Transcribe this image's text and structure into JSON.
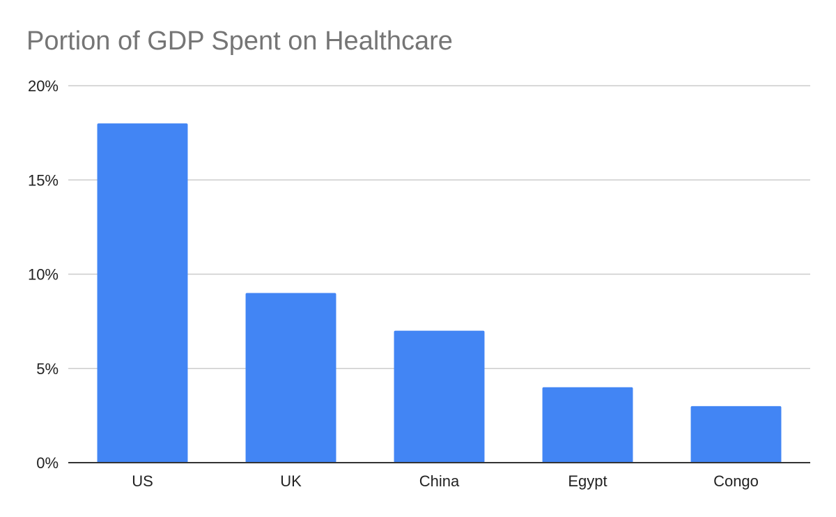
{
  "chart_data": {
    "type": "bar",
    "title": "Portion of GDP Spent on Healthcare",
    "xlabel": "",
    "ylabel": "",
    "categories": [
      "US",
      "UK",
      "China",
      "Egypt",
      "Congo"
    ],
    "values": [
      0.18,
      0.09,
      0.07,
      0.04,
      0.03
    ],
    "ylim": [
      0,
      0.2
    ],
    "yticks": [
      {
        "value": 0,
        "label": "0%"
      },
      {
        "value": 0.05,
        "label": "5%"
      },
      {
        "value": 0.1,
        "label": "10%"
      },
      {
        "value": 0.15,
        "label": "15%"
      },
      {
        "value": 0.2,
        "label": "20%"
      }
    ],
    "grid": true,
    "legend": "none"
  },
  "colors": {
    "bar": "#4285f4",
    "grid": "#cccccc",
    "axis": "#333333",
    "title": "#757575"
  }
}
